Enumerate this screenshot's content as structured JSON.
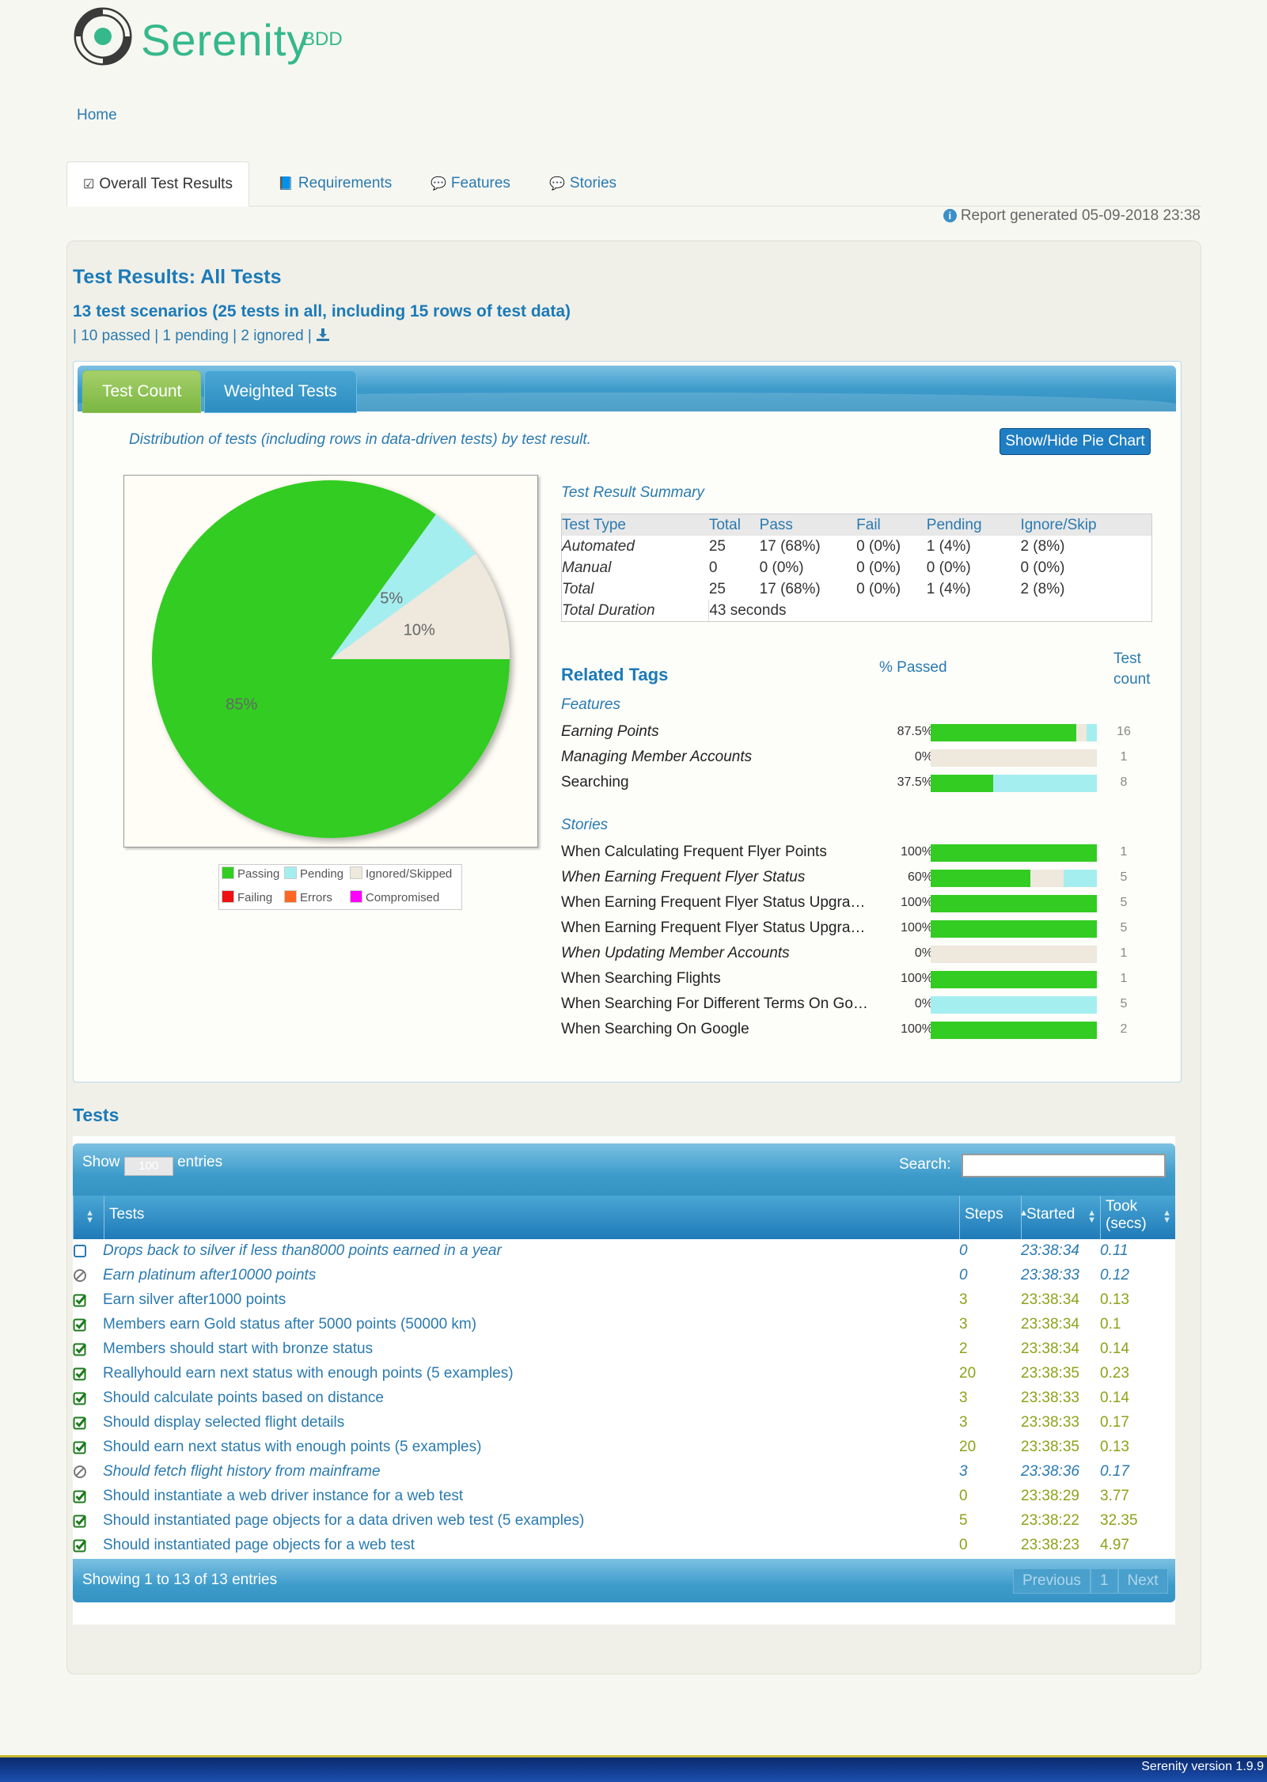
{
  "header": {
    "logo_text": "Serenity",
    "logo_sub": "BDD",
    "breadcrumb_home": "Home"
  },
  "tabs": [
    {
      "label": "Overall Test Results",
      "icon": "check-square-icon",
      "active": true
    },
    {
      "label": "Requirements",
      "icon": "book-icon",
      "active": false
    },
    {
      "label": "Features",
      "icon": "comments-icon",
      "active": false
    },
    {
      "label": "Stories",
      "icon": "comments-icon",
      "active": false
    }
  ],
  "report_generated": "Report generated 05-09-2018 23:38",
  "results": {
    "title": "Test Results: All Tests",
    "scenarios": "13 test scenarios (25 tests in all, including 15 rows of test data)",
    "passed_count": "10",
    "passed_label": "passed",
    "pending_count": "1",
    "pending_label": "pending",
    "ignored_count": "2",
    "ignored_label": "ignored"
  },
  "chart_tabs": {
    "count": "Test Count",
    "weighted": "Weighted Tests"
  },
  "distribution_text": "Distribution of tests (including rows in data-driven tests) by test result.",
  "pie_button": "Show/Hide Pie Chart",
  "chart_data": {
    "type": "pie",
    "slices": [
      {
        "label": "Passing",
        "value": 85,
        "color": "#33cc22",
        "text": "85%"
      },
      {
        "label": "Pending",
        "value": 5,
        "color": "#a5eef0",
        "text": "5%"
      },
      {
        "label": "Ignored/Skipped",
        "value": 10,
        "color": "#eee8dd",
        "text": "10%"
      }
    ],
    "legend": [
      {
        "label": "Passing",
        "color": "#33cc22"
      },
      {
        "label": "Pending",
        "color": "#a5eef0"
      },
      {
        "label": "Ignored/Skipped",
        "color": "#eee8dd"
      },
      {
        "label": "Failing",
        "color": "#ee1111"
      },
      {
        "label": "Errors",
        "color": "#ff6622"
      },
      {
        "label": "Compromised",
        "color": "#ff00ff"
      }
    ],
    "legend_placement": "bottom"
  },
  "summary": {
    "title": "Test Result Summary",
    "headers": [
      "Test Type",
      "Total",
      "Pass",
      "Fail",
      "Pending",
      "Ignore/Skip"
    ],
    "rows": [
      [
        "Automated",
        "25",
        "17 (68%)",
        "0 (0%)",
        "1 (4%)",
        "2 (8%)"
      ],
      [
        "Manual",
        "0",
        "0 (0%)",
        "0 (0%)",
        "0 (0%)",
        "0 (0%)"
      ],
      [
        "Total",
        "25",
        "17 (68%)",
        "0 (0%)",
        "1 (4%)",
        "2 (8%)"
      ]
    ],
    "duration_label": "Total Duration",
    "duration_value": "43 seconds"
  },
  "related": {
    "title": "Related Tags",
    "pct_header": "% Passed",
    "count_header_1": "Test",
    "count_header_2": "count",
    "groups": [
      {
        "title": "Features",
        "items": [
          {
            "name": "Earning Points",
            "pct": "87.5%",
            "pass": 87.5,
            "ignore": 6.25,
            "pending": 6.25,
            "count": "16",
            "italic": true
          },
          {
            "name": "Managing Member Accounts",
            "pct": "0%",
            "pass": 0,
            "ignore": 100,
            "pending": 0,
            "count": "1",
            "italic": true
          },
          {
            "name": "Searching",
            "pct": "37.5%",
            "pass": 37.5,
            "ignore": 0,
            "pending": 62.5,
            "count": "8",
            "italic": false
          }
        ]
      },
      {
        "title": "Stories",
        "items": [
          {
            "name": "When Calculating Frequent Flyer Points",
            "pct": "100%",
            "pass": 100,
            "ignore": 0,
            "pending": 0,
            "count": "1",
            "italic": false
          },
          {
            "name": "When Earning Frequent Flyer Status",
            "pct": "60%",
            "pass": 60,
            "ignore": 20,
            "pending": 20,
            "count": "5",
            "italic": true
          },
          {
            "name": "When Earning Frequent Flyer Status Upgrades",
            "pct": "100%",
            "pass": 100,
            "ignore": 0,
            "pending": 0,
            "count": "5",
            "italic": false
          },
          {
            "name": "When Earning Frequent Flyer Status Upgrades",
            "pct": "100%",
            "pass": 100,
            "ignore": 0,
            "pending": 0,
            "count": "5",
            "italic": false
          },
          {
            "name": "When Updating Member Accounts",
            "pct": "0%",
            "pass": 0,
            "ignore": 100,
            "pending": 0,
            "count": "1",
            "italic": true
          },
          {
            "name": "When Searching Flights",
            "pct": "100%",
            "pass": 100,
            "ignore": 0,
            "pending": 0,
            "count": "1",
            "italic": false
          },
          {
            "name": "When Searching For Different Terms On Google",
            "pct": "0%",
            "pass": 0,
            "ignore": 0,
            "pending": 100,
            "count": "5",
            "italic": false
          },
          {
            "name": "When Searching On Google",
            "pct": "100%",
            "pass": 100,
            "ignore": 0,
            "pending": 0,
            "count": "2",
            "italic": false
          }
        ]
      }
    ]
  },
  "tests": {
    "title": "Tests",
    "show_label": "Show",
    "show_value": "100",
    "entries_label": "entries",
    "search_label": "Search:",
    "columns": [
      "Tests",
      "Steps",
      "Started",
      "Took (secs)"
    ],
    "rows": [
      {
        "status": "pending",
        "name": "Drops back to silver if less than8000 points earned in a year",
        "steps": "0",
        "started": "23:38:34",
        "took": "0.11"
      },
      {
        "status": "ignored",
        "name": "Earn platinum after10000 points",
        "steps": "0",
        "started": "23:38:33",
        "took": "0.12"
      },
      {
        "status": "success",
        "name": "Earn silver after1000 points",
        "steps": "3",
        "started": "23:38:34",
        "took": "0.13"
      },
      {
        "status": "success",
        "name": "Members earn Gold status after 5000 points (50000 km)",
        "steps": "3",
        "started": "23:38:34",
        "took": "0.1"
      },
      {
        "status": "success",
        "name": "Members should start with bronze status",
        "steps": "2",
        "started": "23:38:34",
        "took": "0.14"
      },
      {
        "status": "success",
        "name": "Reallyhould earn next status with enough points (5 examples)",
        "steps": "20",
        "started": "23:38:35",
        "took": "0.23"
      },
      {
        "status": "success",
        "name": "Should calculate points based on distance",
        "steps": "3",
        "started": "23:38:33",
        "took": "0.14"
      },
      {
        "status": "success",
        "name": "Should display selected flight details",
        "steps": "3",
        "started": "23:38:33",
        "took": "0.17"
      },
      {
        "status": "success",
        "name": "Should earn next status with enough points (5 examples)",
        "steps": "20",
        "started": "23:38:35",
        "took": "0.13"
      },
      {
        "status": "ignored",
        "name": "Should fetch flight history from mainframe",
        "steps": "3",
        "started": "23:38:36",
        "took": "0.17"
      },
      {
        "status": "success",
        "name": "Should instantiate a web driver instance for a web test",
        "steps": "0",
        "started": "23:38:29",
        "took": "3.77"
      },
      {
        "status": "success",
        "name": "Should instantiated page objects for a data driven web test (5 examples)",
        "steps": "5",
        "started": "23:38:22",
        "took": "32.35"
      },
      {
        "status": "success",
        "name": "Should instantiated page objects for a web test",
        "steps": "0",
        "started": "23:38:23",
        "took": "4.97"
      }
    ],
    "showing": "Showing 1 to 13 of 13 entries",
    "pager": {
      "previous": "Previous",
      "page": "1",
      "next": "Next"
    }
  },
  "footer": {
    "version": "Serenity version 1.9.9"
  }
}
